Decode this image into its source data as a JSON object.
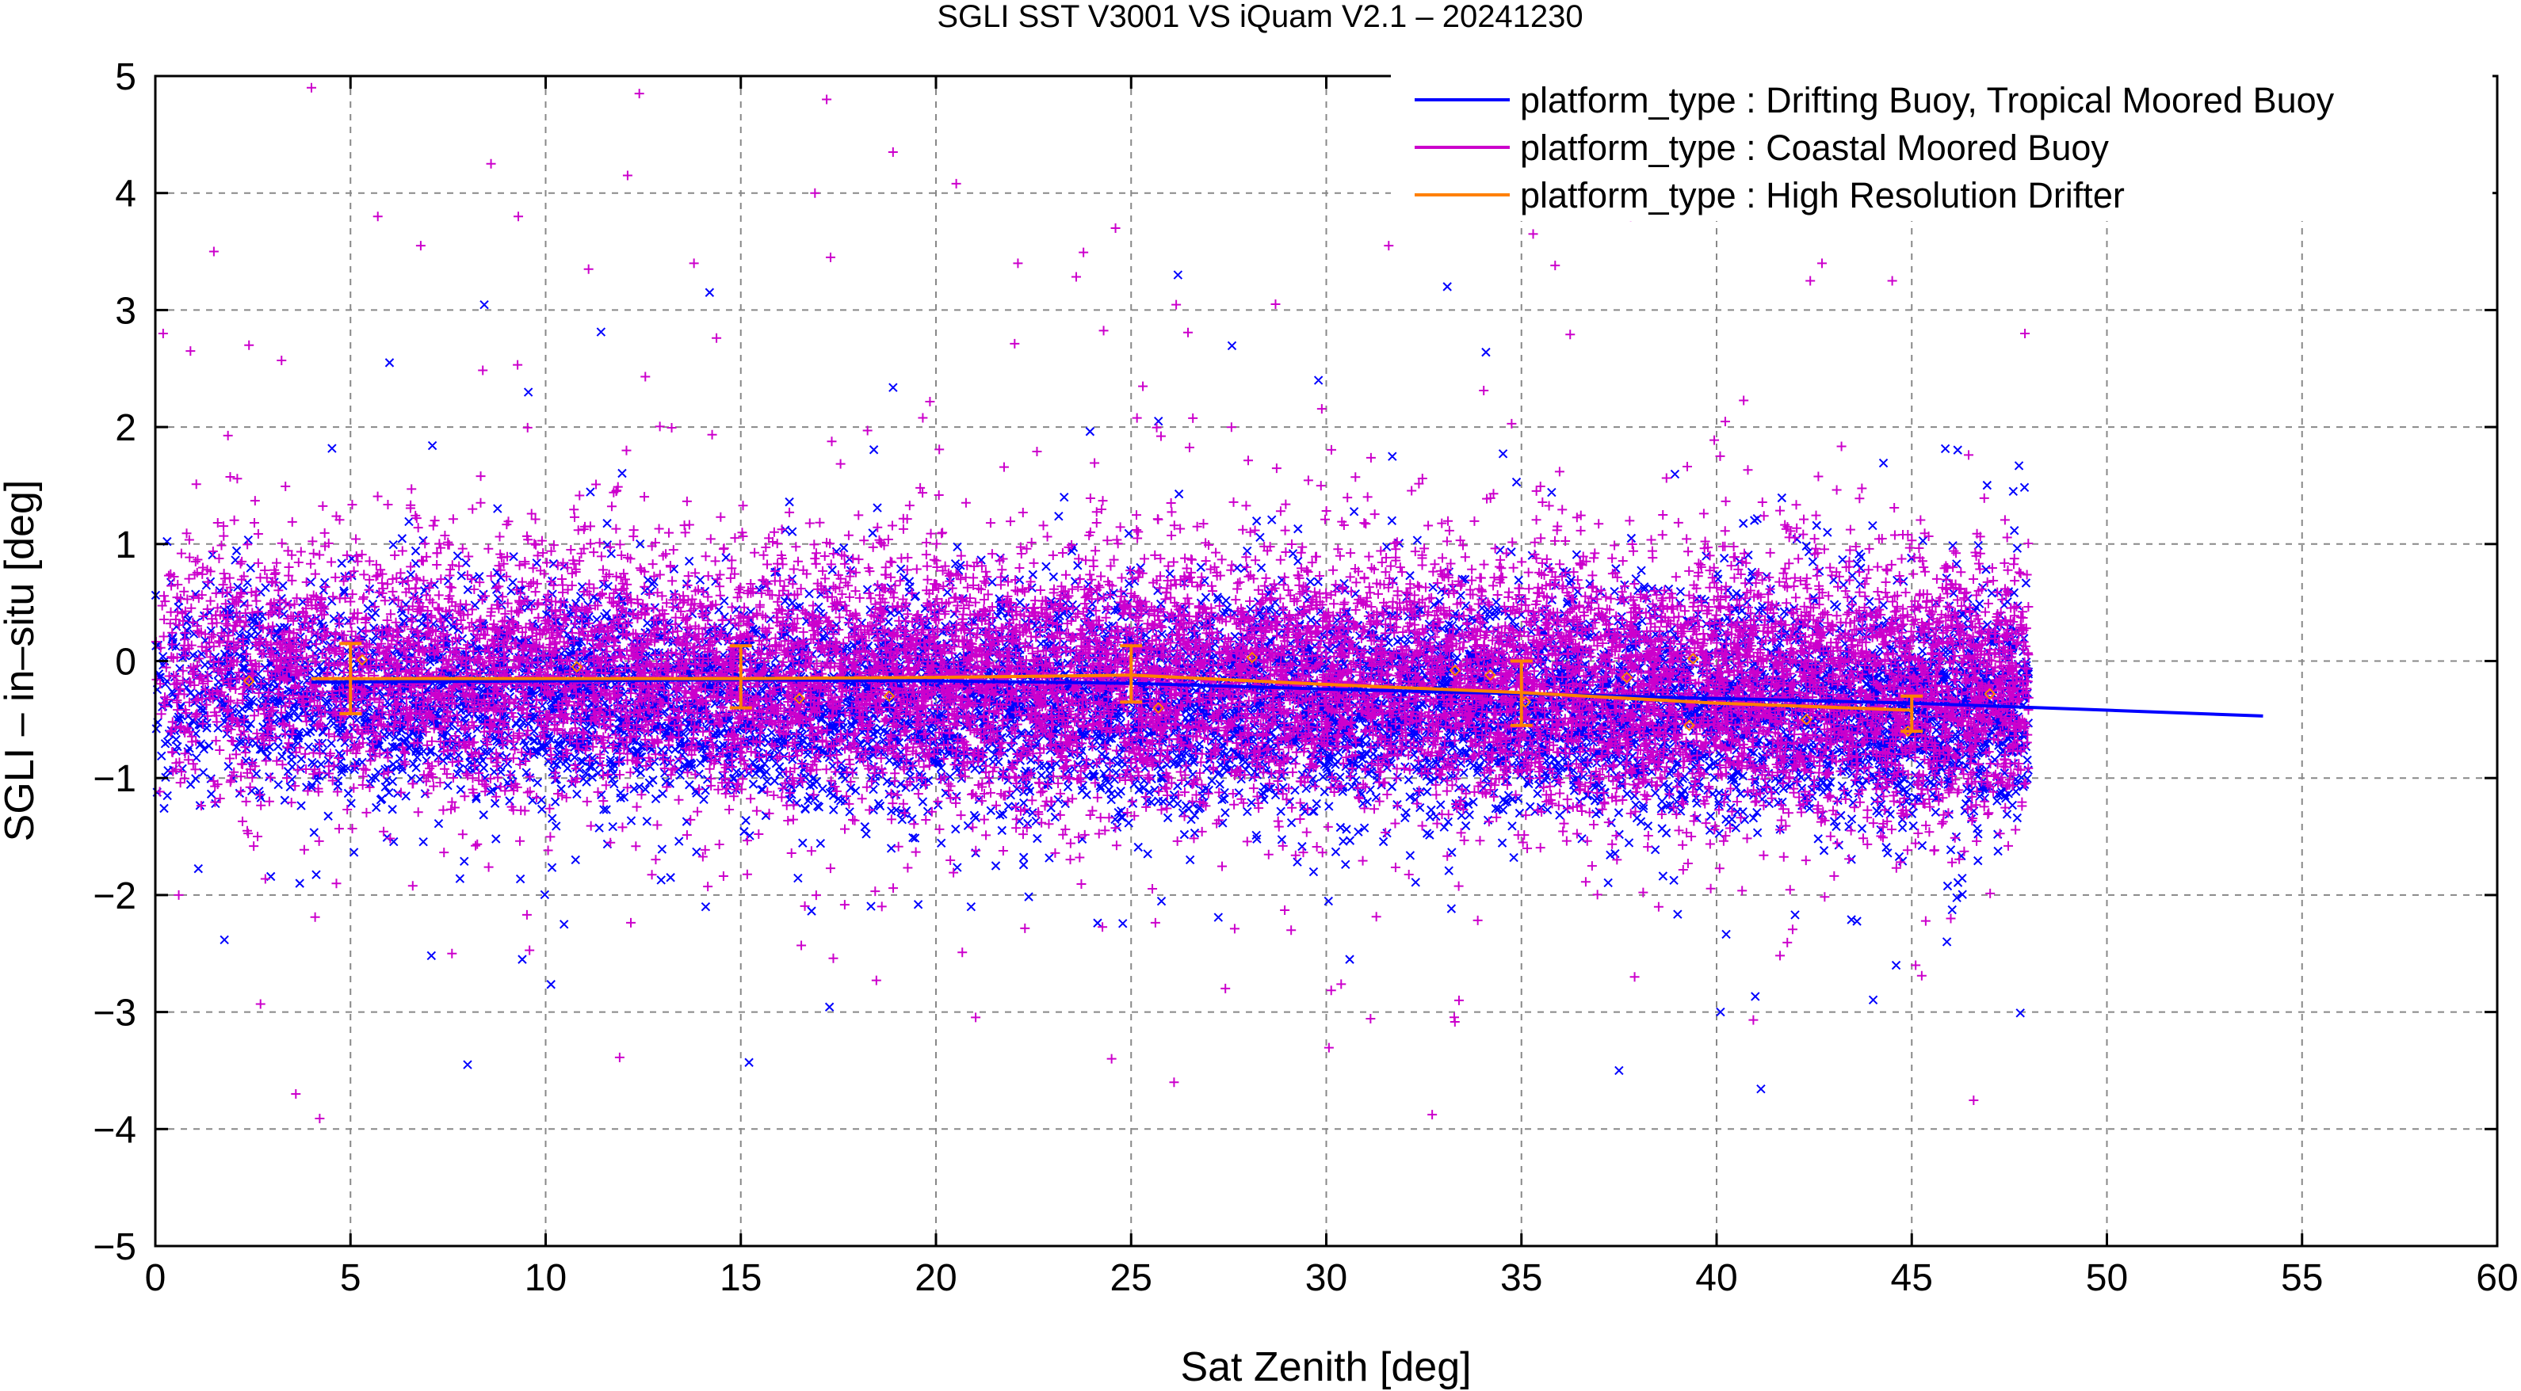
{
  "chart_data": {
    "type": "scatter",
    "title": "SGLI SST V3001 VS iQuam V2.1  – 20241230",
    "xlabel": "Sat Zenith [deg]",
    "ylabel": "SGLI – in–situ [deg]",
    "xlim": [
      0,
      60
    ],
    "ylim": [
      -5,
      5
    ],
    "x_ticks": [
      "0",
      "5",
      "10",
      "15",
      "20",
      "25",
      "30",
      "35",
      "40",
      "45",
      "50",
      "55",
      "60"
    ],
    "y_ticks": [
      "5",
      "4",
      "3",
      "2",
      "1",
      "0",
      "−1",
      "−2",
      "−3",
      "−4",
      "−5"
    ],
    "grid": true,
    "legend_position": "top-right",
    "colors": {
      "drifting": "#0000ff",
      "coastal": "#cc00cc",
      "hires": "#ff8000"
    },
    "series": [
      {
        "name": "platform_type : Drifting Buoy, Tropical Moored Buoy",
        "color": "#0000ff",
        "marker": "x",
        "point_count": "dense",
        "scatter_x_range": [
          0,
          48
        ],
        "scatter_mean": -0.25,
        "scatter_spread": 0.45,
        "outliers": [
          {
            "x": 8,
            "y": -3.45
          },
          {
            "x": 9.4,
            "y": -2.55
          },
          {
            "x": 14.2,
            "y": 3.15
          },
          {
            "x": 29.8,
            "y": 2.4
          },
          {
            "x": 30.6,
            "y": -2.55
          },
          {
            "x": 37.5,
            "y": -3.5
          },
          {
            "x": 40.1,
            "y": -3.0
          },
          {
            "x": 44.6,
            "y": -2.6
          },
          {
            "x": 26.2,
            "y": 3.3
          },
          {
            "x": 25.7,
            "y": 2.05
          },
          {
            "x": 3.7,
            "y": -1.9
          },
          {
            "x": 14.1,
            "y": -2.1
          },
          {
            "x": 45.9,
            "y": -2.4
          },
          {
            "x": 20.9,
            "y": -2.1
          },
          {
            "x": 6,
            "y": 2.55
          },
          {
            "x": 13.2,
            "y": -1.85
          },
          {
            "x": 33.1,
            "y": 3.2
          },
          {
            "x": 47.6,
            "y": 1.45
          }
        ],
        "fit_line": {
          "x": [
            4,
            10,
            15,
            20,
            25,
            30,
            35,
            40,
            45,
            50,
            54
          ],
          "y": [
            -0.18,
            -0.17,
            -0.16,
            -0.17,
            -0.19,
            -0.24,
            -0.28,
            -0.32,
            -0.36,
            -0.42,
            -0.47
          ]
        }
      },
      {
        "name": "platform_type : Coastal Moored Buoy",
        "color": "#cc00cc",
        "marker": "+",
        "point_count": "dense",
        "scatter_x_range": [
          0,
          48
        ],
        "scatter_mean": -0.05,
        "scatter_spread": 0.55,
        "outliers": [
          {
            "x": 4,
            "y": 4.9
          },
          {
            "x": 12.4,
            "y": 4.85
          },
          {
            "x": 17.2,
            "y": 4.8
          },
          {
            "x": 8.6,
            "y": 4.25
          },
          {
            "x": 12.1,
            "y": 4.15
          },
          {
            "x": 18.9,
            "y": 4.35
          },
          {
            "x": 16.9,
            "y": 4.0
          },
          {
            "x": 9.3,
            "y": 3.8
          },
          {
            "x": 1.5,
            "y": 3.5
          },
          {
            "x": 5.7,
            "y": 3.8
          },
          {
            "x": 6.8,
            "y": 3.55
          },
          {
            "x": 11.1,
            "y": 3.35
          },
          {
            "x": 13.8,
            "y": 3.4
          },
          {
            "x": 17.3,
            "y": 3.45
          },
          {
            "x": 22.1,
            "y": 3.4
          },
          {
            "x": 24.6,
            "y": 3.7
          },
          {
            "x": 28.7,
            "y": 3.05
          },
          {
            "x": 31.6,
            "y": 3.55
          },
          {
            "x": 34.2,
            "y": 3.95
          },
          {
            "x": 35.3,
            "y": 3.65
          },
          {
            "x": 37.8,
            "y": 3.8
          },
          {
            "x": 39.2,
            "y": 4.1
          },
          {
            "x": 42.7,
            "y": 3.4
          },
          {
            "x": 44.5,
            "y": 3.25
          },
          {
            "x": 0.2,
            "y": 2.8
          },
          {
            "x": 0.9,
            "y": 2.65
          },
          {
            "x": 2.4,
            "y": 2.7
          },
          {
            "x": 3.6,
            "y": -3.7
          },
          {
            "x": 24.5,
            "y": -3.4
          },
          {
            "x": 26.1,
            "y": -3.6
          },
          {
            "x": 33.4,
            "y": -2.9
          },
          {
            "x": 7.6,
            "y": -2.5
          },
          {
            "x": 37.9,
            "y": -2.7
          },
          {
            "x": 45.1,
            "y": -2.6
          },
          {
            "x": 46,
            "y": -2.2
          },
          {
            "x": 0.6,
            "y": -2.0
          },
          {
            "x": 29.1,
            "y": -2.3
          },
          {
            "x": 42.4,
            "y": 3.25
          },
          {
            "x": 47.9,
            "y": 2.8
          }
        ]
      },
      {
        "name": "platform_type : High Resolution Drifter",
        "color": "#ff8000",
        "marker": "diamond",
        "line": {
          "x": [
            4,
            10,
            15,
            20,
            25,
            30,
            35,
            40,
            45
          ],
          "y": [
            -0.15,
            -0.15,
            -0.15,
            -0.14,
            -0.12,
            -0.2,
            -0.27,
            -0.36,
            -0.42
          ]
        },
        "error_bars": [
          {
            "x": 5,
            "y": -0.15,
            "low": -0.45,
            "high": 0.15
          },
          {
            "x": 15,
            "y": -0.15,
            "low": -0.4,
            "high": 0.13
          },
          {
            "x": 25,
            "y": -0.12,
            "low": -0.35,
            "high": 0.13
          },
          {
            "x": 35,
            "y": -0.27,
            "low": -0.55,
            "high": 0.0
          },
          {
            "x": 45,
            "y": -0.42,
            "low": -0.6,
            "high": -0.3
          }
        ],
        "points": [
          {
            "x": 2.4,
            "y": -0.17
          },
          {
            "x": 5.3,
            "y": 0.01
          },
          {
            "x": 10.8,
            "y": -0.05
          },
          {
            "x": 16.5,
            "y": -0.32
          },
          {
            "x": 18.8,
            "y": -0.3
          },
          {
            "x": 25.7,
            "y": -0.4
          },
          {
            "x": 28.1,
            "y": 0.03
          },
          {
            "x": 33.3,
            "y": -0.08
          },
          {
            "x": 34.2,
            "y": -0.12
          },
          {
            "x": 35.1,
            "y": -0.35
          },
          {
            "x": 37.7,
            "y": -0.14
          },
          {
            "x": 39.4,
            "y": 0.02
          },
          {
            "x": 39.3,
            "y": -0.55
          },
          {
            "x": 42.3,
            "y": -0.5
          },
          {
            "x": 44.9,
            "y": -0.6
          },
          {
            "x": 47,
            "y": -0.28
          }
        ]
      }
    ]
  }
}
